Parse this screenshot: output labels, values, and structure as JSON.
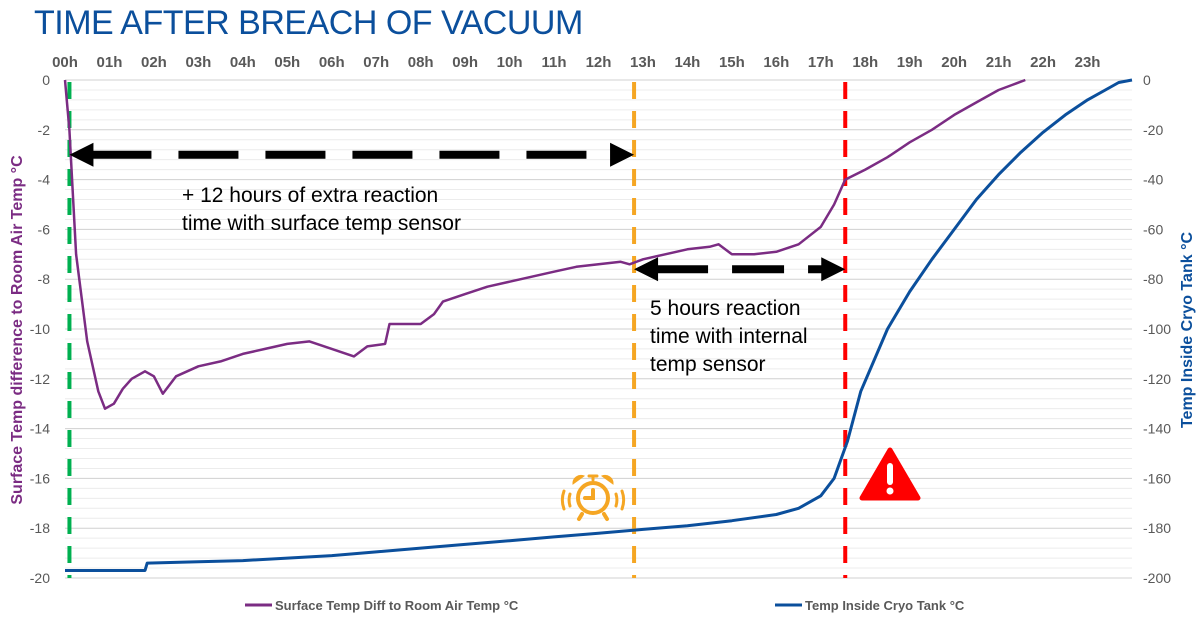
{
  "title": "TIME AFTER BREACH OF VACUUM",
  "chart_data": {
    "type": "line",
    "title": "TIME AFTER BREACH OF VACUUM",
    "x_ticks": [
      "00h",
      "01h",
      "02h",
      "03h",
      "04h",
      "05h",
      "06h",
      "07h",
      "08h",
      "09h",
      "10h",
      "11h",
      "12h",
      "13h",
      "14h",
      "15h",
      "16h",
      "17h",
      "18h",
      "19h",
      "20h",
      "21h",
      "22h",
      "23h"
    ],
    "xlim": [
      0,
      24
    ],
    "y_left": {
      "label": "Surface Temp difference to Room Air Temp °C",
      "ylim": [
        -20,
        0
      ],
      "ticks": [
        0,
        -2,
        -4,
        -6,
        -8,
        -10,
        -12,
        -14,
        -16,
        -18,
        -20
      ],
      "color": "#7b2c83"
    },
    "y_right": {
      "label": "Temp Inside Cryo Tank °C",
      "ylim": [
        -200,
        0
      ],
      "ticks": [
        0,
        -20,
        -40,
        -60,
        -80,
        -100,
        -120,
        -140,
        -160,
        -180,
        -200
      ],
      "color": "#0b4f9c"
    },
    "grid": true,
    "legend_position": "bottom",
    "series": [
      {
        "name": "Surface Temp Diff to Room Air Temp °C",
        "axis": "left",
        "color": "#7b2c83",
        "x": [
          0,
          0.1,
          0.25,
          0.5,
          0.75,
          0.9,
          1.1,
          1.3,
          1.5,
          1.8,
          2.0,
          2.2,
          2.5,
          3.0,
          3.5,
          4.0,
          4.5,
          5.0,
          5.5,
          6.0,
          6.5,
          6.8,
          7.2,
          7.3,
          8.0,
          8.3,
          8.5,
          9.0,
          9.5,
          10.0,
          10.5,
          11.0,
          11.5,
          12.0,
          12.5,
          12.7,
          13.0,
          13.5,
          14.0,
          14.5,
          14.7,
          15.0,
          15.5,
          16.0,
          16.5,
          17.0,
          17.3,
          17.55,
          18.0,
          18.5,
          19.0,
          19.5,
          20.0,
          20.5,
          21.0,
          21.3,
          21.6
        ],
        "y": [
          0,
          -2,
          -7,
          -10.5,
          -12.5,
          -13.2,
          -13.0,
          -12.4,
          -12.0,
          -11.7,
          -11.9,
          -12.6,
          -11.9,
          -11.5,
          -11.3,
          -11.0,
          -10.8,
          -10.6,
          -10.5,
          -10.8,
          -11.1,
          -10.7,
          -10.6,
          -9.8,
          -9.8,
          -9.4,
          -8.9,
          -8.6,
          -8.3,
          -8.1,
          -7.9,
          -7.7,
          -7.5,
          -7.4,
          -7.3,
          -7.4,
          -7.2,
          -7.0,
          -6.8,
          -6.7,
          -6.6,
          -7.0,
          -7.0,
          -6.9,
          -6.6,
          -5.9,
          -5.0,
          -4.0,
          -3.6,
          -3.1,
          -2.5,
          -2.0,
          -1.4,
          -0.9,
          -0.4,
          -0.2,
          0
        ]
      },
      {
        "name": "Temp Inside Cryo Tank °C",
        "axis": "right",
        "color": "#0b4f9c",
        "x": [
          0,
          1.8,
          1.85,
          3,
          4,
          5,
          6,
          7,
          8,
          9,
          10,
          11,
          12,
          13,
          14,
          15,
          16,
          16.5,
          17,
          17.3,
          17.6,
          17.9,
          18.5,
          19,
          19.5,
          20,
          20.5,
          21,
          21.5,
          22,
          22.5,
          23,
          23.5,
          23.7,
          24
        ],
        "y": [
          -197,
          -197,
          -194,
          -193.5,
          -193,
          -192,
          -191,
          -189.5,
          -188,
          -186.5,
          -185,
          -183.5,
          -182,
          -180.5,
          -179,
          -177,
          -174.5,
          -172,
          -167,
          -160,
          -145,
          -125,
          -100,
          -85,
          -72,
          -60,
          -48,
          -38,
          -29,
          -21,
          -14,
          -8,
          -3,
          -1,
          0
        ]
      }
    ],
    "markers": [
      {
        "type": "vline",
        "x": 0.1,
        "color": "#00b050"
      },
      {
        "type": "vline",
        "x": 12.8,
        "color": "#f5a623"
      },
      {
        "type": "vline",
        "x": 17.55,
        "color": "#ff0000"
      }
    ],
    "annotations": [
      {
        "lines": [
          "+ 12 hours of extra reaction",
          "time with surface temp sensor"
        ],
        "arrow_from": 0.1,
        "arrow_to": 12.8,
        "y": -3
      },
      {
        "lines": [
          "5 hours reaction",
          "time with internal",
          "temp sensor"
        ],
        "arrow_from": 12.8,
        "arrow_to": 17.55,
        "y": -7.6
      }
    ],
    "icons": [
      "alarm-clock-icon",
      "warning-triangle-icon"
    ]
  }
}
